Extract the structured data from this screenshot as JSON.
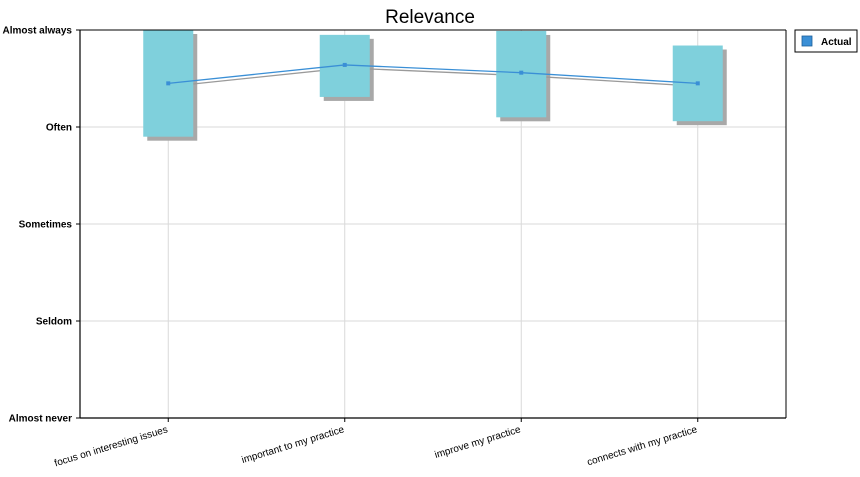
{
  "chart_data": {
    "type": "box",
    "title": "Relevance",
    "xlabel": "",
    "ylabel": "",
    "categories": [
      "focus on interesting issues",
      "important to my practice",
      "improve my practice",
      "connects with my practice"
    ],
    "y_tick_labels": [
      "Almost never",
      "Seldom",
      "Sometimes",
      "Often",
      "Almost always"
    ],
    "ylim": [
      1,
      5
    ],
    "series": [
      {
        "name": "Actual",
        "means": [
          4.45,
          4.64,
          4.56,
          4.45
        ],
        "box_low": [
          3.9,
          4.31,
          4.1,
          4.06
        ],
        "box_high": [
          5.0,
          4.95,
          4.99,
          4.84
        ]
      }
    ],
    "grid": true,
    "legend_position": "top-right",
    "colors": {
      "box_fill": "#7fd0dc",
      "box_shadow": "#a8a8a8",
      "line": "#3a8fd6",
      "shadow_line": "#9a9a9a",
      "grid": "#d9d9d9"
    }
  }
}
